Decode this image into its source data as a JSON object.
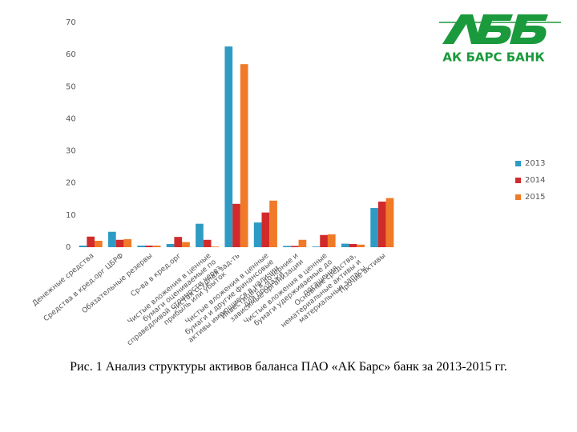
{
  "chart_data": {
    "type": "bar",
    "categories": [
      "Денежные средства",
      "Средства в кред.орг ЦБРФ",
      "Обязательные резервы",
      "Ср-ва в кред.орг",
      "Чистые вложения в ценные бумаги оцениваемые по справедливой стоимости через прибыль или убыток",
      "Чистая ссудная зад-ть",
      "Чистые вложения в ценные бумаги и другие финансовые активы имеющиеся в наличии для продажи",
      "Инвестиции в дочерние и зависимые организации",
      "Чистые вложения в ценные бумаги удерживаемые до погашения",
      "Основные средства, нематериальные активы и материальные запасы",
      "Прочие активы"
    ],
    "series": [
      {
        "name": "2013",
        "color": "#2e9bc4",
        "values": [
          0.5,
          4.8,
          0.5,
          1,
          7.3,
          62.5,
          7.7,
          0.4,
          0.2,
          1.1,
          12.2
        ]
      },
      {
        "name": "2014",
        "color": "#d12a2a",
        "values": [
          3.3,
          2.3,
          0.5,
          3.2,
          2.3,
          13.5,
          10.8,
          0.4,
          3.8,
          1,
          14.2
        ]
      },
      {
        "name": "2015",
        "color": "#f07a28",
        "values": [
          2,
          2.5,
          0.5,
          1.6,
          0.2,
          57,
          14.5,
          2.3,
          4,
          0.8,
          15.3
        ]
      }
    ],
    "ylim": [
      0,
      70
    ],
    "yticks": [
      0,
      10,
      20,
      30,
      40,
      50,
      60,
      70
    ],
    "grid": false,
    "legend": "right",
    "caption": "Рис. 1 Анализ структуры активов баланса ПАО «АК Барс» банк за 2013-2015 гг.",
    "logo_text": "АК БАРС БАНК"
  }
}
